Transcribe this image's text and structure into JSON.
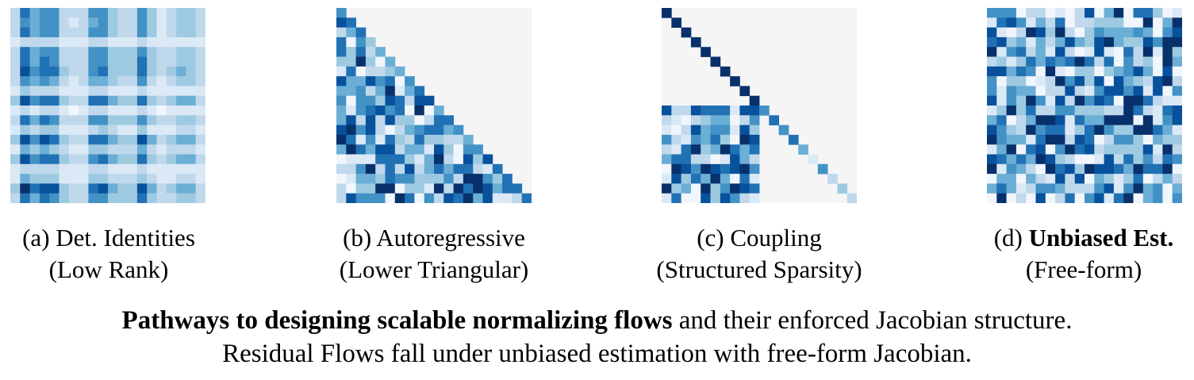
{
  "panels": [
    {
      "id": "a",
      "prefix": "(a) ",
      "name": "Det. Identities",
      "name_bold": false,
      "sub": "(Low Rank)",
      "structure": "low-rank"
    },
    {
      "id": "b",
      "prefix": "(b) ",
      "name": "Autoregressive",
      "name_bold": false,
      "sub": "(Lower Triangular)",
      "structure": "lower-triangular"
    },
    {
      "id": "c",
      "prefix": "(c) ",
      "name": "Coupling",
      "name_bold": false,
      "sub": "(Structured Sparsity)",
      "structure": "structured-sparsity"
    },
    {
      "id": "d",
      "prefix": "(d) ",
      "name": "Unbiased Est.",
      "name_bold": true,
      "sub": "(Free-form)",
      "structure": "free-form"
    }
  ],
  "matrix": {
    "size": 20
  },
  "colors": {
    "background": "#f5f5f5",
    "palette": [
      "#f0f6fc",
      "#dbe9f6",
      "#c0d8ec",
      "#9ecae1",
      "#6baed6",
      "#4292c6",
      "#2171b5",
      "#08519c",
      "#08306b"
    ]
  },
  "caption": {
    "bold": "Pathways to designing scalable normalizing flows",
    "rest": " and their enforced Jacobian structure.",
    "line2": "Residual Flows fall under unbiased estimation with free-form Jacobian."
  }
}
